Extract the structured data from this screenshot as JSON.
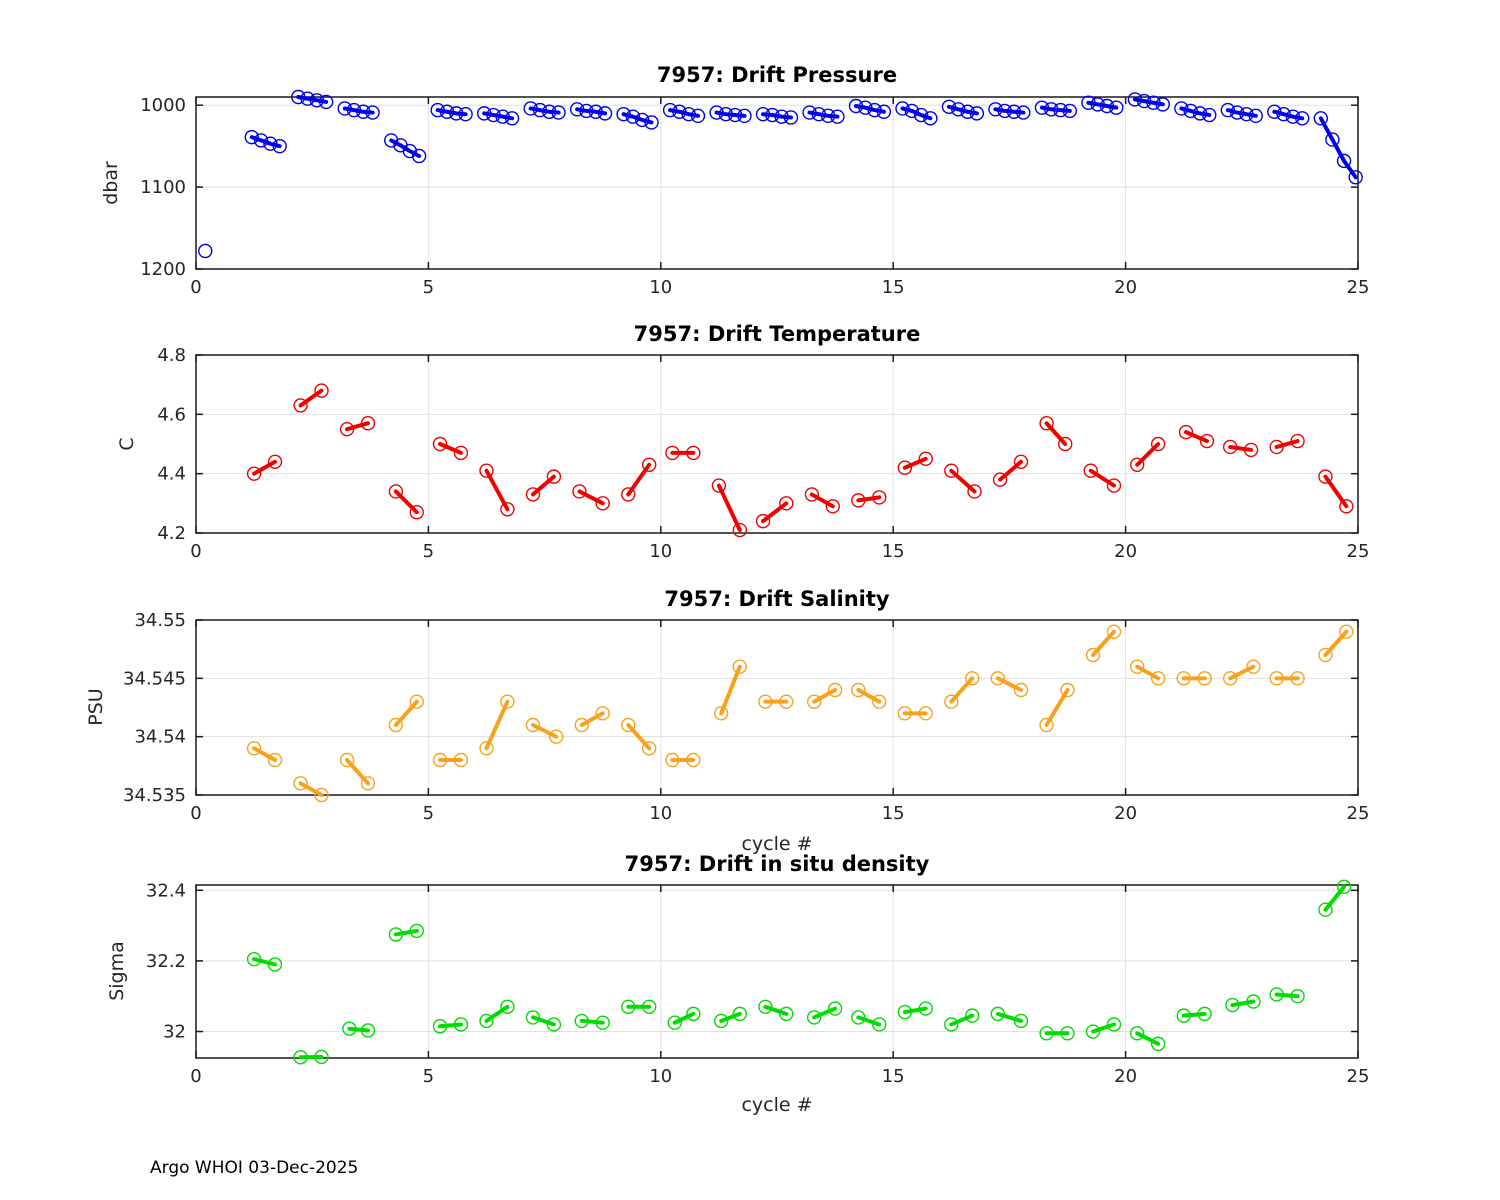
{
  "figure": {
    "float_id": "7957",
    "footer": "Argo WHOI 03-Dec-2025"
  },
  "chart_data": [
    {
      "type": "line",
      "title": "7957: Drift Pressure",
      "ylabel": "dbar",
      "xlabel": "",
      "color": "#0000EE",
      "xlim": [
        0,
        25
      ],
      "ylim": [
        990,
        1200
      ],
      "y_reversed": true,
      "grid": true,
      "xticks": [
        0,
        5,
        10,
        15,
        20,
        25
      ],
      "xtick_labels": [
        "0",
        "5",
        "10",
        "15",
        "20",
        "25"
      ],
      "yticks": [
        1000,
        1100,
        1200
      ],
      "ytick_labels": [
        "1000",
        "1100",
        "1200"
      ],
      "segments": [
        [
          [
            0.2,
            1178
          ]
        ],
        [
          [
            1.2,
            1039
          ],
          [
            1.4,
            1043
          ],
          [
            1.6,
            1047
          ],
          [
            1.8,
            1050
          ]
        ],
        [
          [
            2.2,
            990
          ],
          [
            2.4,
            992
          ],
          [
            2.6,
            994
          ],
          [
            2.8,
            996
          ]
        ],
        [
          [
            3.2,
            1004
          ],
          [
            3.4,
            1006
          ],
          [
            3.6,
            1008
          ],
          [
            3.8,
            1009
          ]
        ],
        [
          [
            4.2,
            1043
          ],
          [
            4.4,
            1049
          ],
          [
            4.6,
            1056
          ],
          [
            4.8,
            1062
          ]
        ],
        [
          [
            5.2,
            1006
          ],
          [
            5.4,
            1008
          ],
          [
            5.6,
            1010
          ],
          [
            5.8,
            1011
          ]
        ],
        [
          [
            6.2,
            1010
          ],
          [
            6.4,
            1012
          ],
          [
            6.6,
            1014
          ],
          [
            6.8,
            1016
          ]
        ],
        [
          [
            7.2,
            1004
          ],
          [
            7.4,
            1006
          ],
          [
            7.6,
            1008
          ],
          [
            7.8,
            1009
          ]
        ],
        [
          [
            8.2,
            1005
          ],
          [
            8.4,
            1007
          ],
          [
            8.6,
            1008
          ],
          [
            8.8,
            1010
          ]
        ],
        [
          [
            9.2,
            1011
          ],
          [
            9.4,
            1014
          ],
          [
            9.6,
            1018
          ],
          [
            9.8,
            1021
          ]
        ],
        [
          [
            10.2,
            1006
          ],
          [
            10.4,
            1008
          ],
          [
            10.6,
            1011
          ],
          [
            10.8,
            1013
          ]
        ],
        [
          [
            11.2,
            1009
          ],
          [
            11.4,
            1011
          ],
          [
            11.6,
            1012
          ],
          [
            11.8,
            1013
          ]
        ],
        [
          [
            12.2,
            1011
          ],
          [
            12.4,
            1012
          ],
          [
            12.6,
            1014
          ],
          [
            12.8,
            1015
          ]
        ],
        [
          [
            13.2,
            1009
          ],
          [
            13.4,
            1011
          ],
          [
            13.6,
            1013
          ],
          [
            13.8,
            1014
          ]
        ],
        [
          [
            14.2,
            1001
          ],
          [
            14.4,
            1003
          ],
          [
            14.6,
            1006
          ],
          [
            14.8,
            1008
          ]
        ],
        [
          [
            15.2,
            1004
          ],
          [
            15.4,
            1007
          ],
          [
            15.6,
            1012
          ],
          [
            15.8,
            1016
          ]
        ],
        [
          [
            16.2,
            1002
          ],
          [
            16.4,
            1005
          ],
          [
            16.6,
            1008
          ],
          [
            16.8,
            1010
          ]
        ],
        [
          [
            17.2,
            1005
          ],
          [
            17.4,
            1007
          ],
          [
            17.6,
            1008
          ],
          [
            17.8,
            1009
          ]
        ],
        [
          [
            18.2,
            1003
          ],
          [
            18.4,
            1005
          ],
          [
            18.6,
            1006
          ],
          [
            18.8,
            1007
          ]
        ],
        [
          [
            19.2,
            997
          ],
          [
            19.4,
            999
          ],
          [
            19.6,
            1001
          ],
          [
            19.8,
            1003
          ]
        ],
        [
          [
            20.2,
            993
          ],
          [
            20.4,
            995
          ],
          [
            20.6,
            997
          ],
          [
            20.8,
            999
          ]
        ],
        [
          [
            21.2,
            1004
          ],
          [
            21.4,
            1007
          ],
          [
            21.6,
            1010
          ],
          [
            21.8,
            1012
          ]
        ],
        [
          [
            22.2,
            1006
          ],
          [
            22.4,
            1009
          ],
          [
            22.6,
            1011
          ],
          [
            22.8,
            1013
          ]
        ],
        [
          [
            23.2,
            1008
          ],
          [
            23.4,
            1011
          ],
          [
            23.6,
            1014
          ],
          [
            23.8,
            1016
          ]
        ],
        [
          [
            24.2,
            1016
          ],
          [
            24.45,
            1042
          ],
          [
            24.7,
            1068
          ],
          [
            24.95,
            1088
          ]
        ]
      ]
    },
    {
      "type": "line",
      "title": "7957: Drift Temperature",
      "ylabel": "C",
      "xlabel": "",
      "color": "#F10000",
      "xlim": [
        0,
        25
      ],
      "ylim": [
        4.2,
        4.8
      ],
      "y_reversed": false,
      "grid": true,
      "xticks": [
        0,
        5,
        10,
        15,
        20,
        25
      ],
      "xtick_labels": [
        "0",
        "5",
        "10",
        "15",
        "20",
        "25"
      ],
      "yticks": [
        4.2,
        4.4,
        4.6,
        4.8
      ],
      "ytick_labels": [
        "4.2",
        "4.4",
        "4.6",
        "4.8"
      ],
      "segments": [
        [
          [
            1.25,
            4.4
          ],
          [
            1.7,
            4.44
          ]
        ],
        [
          [
            2.25,
            4.63
          ],
          [
            2.7,
            4.68
          ]
        ],
        [
          [
            3.25,
            4.55
          ],
          [
            3.7,
            4.57
          ]
        ],
        [
          [
            4.3,
            4.34
          ],
          [
            4.75,
            4.27
          ]
        ],
        [
          [
            5.25,
            4.5
          ],
          [
            5.7,
            4.47
          ]
        ],
        [
          [
            6.25,
            4.41
          ],
          [
            6.7,
            4.28
          ]
        ],
        [
          [
            7.25,
            4.33
          ],
          [
            7.7,
            4.39
          ]
        ],
        [
          [
            8.25,
            4.34
          ],
          [
            8.75,
            4.3
          ]
        ],
        [
          [
            9.3,
            4.33
          ],
          [
            9.75,
            4.43
          ]
        ],
        [
          [
            10.25,
            4.47
          ],
          [
            10.7,
            4.47
          ]
        ],
        [
          [
            11.25,
            4.36
          ],
          [
            11.7,
            4.21
          ]
        ],
        [
          [
            12.2,
            4.24
          ],
          [
            12.7,
            4.3
          ]
        ],
        [
          [
            13.25,
            4.33
          ],
          [
            13.7,
            4.29
          ]
        ],
        [
          [
            14.25,
            4.31
          ],
          [
            14.7,
            4.32
          ]
        ],
        [
          [
            15.25,
            4.42
          ],
          [
            15.7,
            4.45
          ]
        ],
        [
          [
            16.25,
            4.41
          ],
          [
            16.75,
            4.34
          ]
        ],
        [
          [
            17.3,
            4.38
          ],
          [
            17.75,
            4.44
          ]
        ],
        [
          [
            18.3,
            4.57
          ],
          [
            18.7,
            4.5
          ]
        ],
        [
          [
            19.25,
            4.41
          ],
          [
            19.75,
            4.36
          ]
        ],
        [
          [
            20.25,
            4.43
          ],
          [
            20.7,
            4.5
          ]
        ],
        [
          [
            21.3,
            4.54
          ],
          [
            21.75,
            4.51
          ]
        ],
        [
          [
            22.25,
            4.49
          ],
          [
            22.7,
            4.48
          ]
        ],
        [
          [
            23.25,
            4.49
          ],
          [
            23.7,
            4.51
          ]
        ],
        [
          [
            24.3,
            4.39
          ],
          [
            24.75,
            4.29
          ]
        ]
      ]
    },
    {
      "type": "line",
      "title": "7957: Drift Salinity",
      "ylabel": "PSU",
      "xlabel": "cycle #",
      "color": "#F9A11B",
      "xlim": [
        0,
        25
      ],
      "ylim": [
        34.535,
        34.55
      ],
      "y_reversed": false,
      "grid": true,
      "xticks": [
        0,
        5,
        10,
        15,
        20,
        25
      ],
      "xtick_labels": [
        "0",
        "5",
        "10",
        "15",
        "20",
        "25"
      ],
      "yticks": [
        34.535,
        34.54,
        34.545,
        34.55
      ],
      "ytick_labels": [
        "34.535",
        "34.54",
        "34.545",
        "34.55"
      ],
      "segments": [
        [
          [
            1.25,
            34.539
          ],
          [
            1.7,
            34.538
          ]
        ],
        [
          [
            2.25,
            34.536
          ],
          [
            2.7,
            34.535
          ]
        ],
        [
          [
            3.25,
            34.538
          ],
          [
            3.7,
            34.536
          ]
        ],
        [
          [
            4.3,
            34.541
          ],
          [
            4.75,
            34.543
          ]
        ],
        [
          [
            5.25,
            34.538
          ],
          [
            5.7,
            34.538
          ]
        ],
        [
          [
            6.25,
            34.539
          ],
          [
            6.7,
            34.543
          ]
        ],
        [
          [
            7.25,
            34.541
          ],
          [
            7.75,
            34.54
          ]
        ],
        [
          [
            8.3,
            34.541
          ],
          [
            8.75,
            34.542
          ]
        ],
        [
          [
            9.3,
            34.541
          ],
          [
            9.75,
            34.539
          ]
        ],
        [
          [
            10.25,
            34.538
          ],
          [
            10.7,
            34.538
          ]
        ],
        [
          [
            11.3,
            34.542
          ],
          [
            11.7,
            34.546
          ]
        ],
        [
          [
            12.25,
            34.543
          ],
          [
            12.7,
            34.543
          ]
        ],
        [
          [
            13.3,
            34.543
          ],
          [
            13.75,
            34.544
          ]
        ],
        [
          [
            14.25,
            34.544
          ],
          [
            14.7,
            34.543
          ]
        ],
        [
          [
            15.25,
            34.542
          ],
          [
            15.7,
            34.542
          ]
        ],
        [
          [
            16.25,
            34.543
          ],
          [
            16.7,
            34.545
          ]
        ],
        [
          [
            17.25,
            34.545
          ],
          [
            17.75,
            34.544
          ]
        ],
        [
          [
            18.3,
            34.541
          ],
          [
            18.75,
            34.544
          ]
        ],
        [
          [
            19.3,
            34.547
          ],
          [
            19.75,
            34.549
          ]
        ],
        [
          [
            20.25,
            34.546
          ],
          [
            20.7,
            34.545
          ]
        ],
        [
          [
            21.25,
            34.545
          ],
          [
            21.7,
            34.545
          ]
        ],
        [
          [
            22.25,
            34.545
          ],
          [
            22.75,
            34.546
          ]
        ],
        [
          [
            23.25,
            34.545
          ],
          [
            23.7,
            34.545
          ]
        ],
        [
          [
            24.3,
            34.547
          ],
          [
            24.75,
            34.549
          ]
        ]
      ]
    },
    {
      "type": "line",
      "title": "7957: Drift in situ density",
      "ylabel": "Sigma",
      "xlabel": "cycle #",
      "color": "#00DB00",
      "xlim": [
        0,
        25
      ],
      "ylim": [
        31.925,
        32.415
      ],
      "y_reversed": false,
      "grid": true,
      "xticks": [
        0,
        5,
        10,
        15,
        20,
        25
      ],
      "xtick_labels": [
        "0",
        "5",
        "10",
        "15",
        "20",
        "25"
      ],
      "yticks": [
        32,
        32.2,
        32.4
      ],
      "ytick_labels": [
        "32",
        "32.2",
        "32.4"
      ],
      "segments": [
        [
          [
            1.25,
            32.205
          ],
          [
            1.7,
            32.19
          ]
        ],
        [
          [
            2.25,
            31.927
          ],
          [
            2.7,
            31.928
          ]
        ],
        [
          [
            3.3,
            32.008
          ],
          [
            3.7,
            32.003
          ]
        ],
        [
          [
            4.3,
            32.275
          ],
          [
            4.75,
            32.285
          ]
        ],
        [
          [
            5.25,
            32.015
          ],
          [
            5.7,
            32.02
          ]
        ],
        [
          [
            6.25,
            32.03
          ],
          [
            6.7,
            32.07
          ]
        ],
        [
          [
            7.25,
            32.04
          ],
          [
            7.7,
            32.02
          ]
        ],
        [
          [
            8.3,
            32.03
          ],
          [
            8.75,
            32.025
          ]
        ],
        [
          [
            9.3,
            32.07
          ],
          [
            9.75,
            32.07
          ]
        ],
        [
          [
            10.3,
            32.025
          ],
          [
            10.7,
            32.05
          ]
        ],
        [
          [
            11.3,
            32.03
          ],
          [
            11.7,
            32.05
          ]
        ],
        [
          [
            12.25,
            32.07
          ],
          [
            12.7,
            32.05
          ]
        ],
        [
          [
            13.3,
            32.04
          ],
          [
            13.75,
            32.065
          ]
        ],
        [
          [
            14.25,
            32.04
          ],
          [
            14.7,
            32.02
          ]
        ],
        [
          [
            15.25,
            32.055
          ],
          [
            15.7,
            32.065
          ]
        ],
        [
          [
            16.25,
            32.02
          ],
          [
            16.7,
            32.045
          ]
        ],
        [
          [
            17.25,
            32.05
          ],
          [
            17.75,
            32.03
          ]
        ],
        [
          [
            18.3,
            31.995
          ],
          [
            18.75,
            31.995
          ]
        ],
        [
          [
            19.3,
            32.0
          ],
          [
            19.75,
            32.02
          ]
        ],
        [
          [
            20.25,
            31.995
          ],
          [
            20.7,
            31.965
          ]
        ],
        [
          [
            21.25,
            32.045
          ],
          [
            21.7,
            32.05
          ]
        ],
        [
          [
            22.3,
            32.075
          ],
          [
            22.75,
            32.085
          ]
        ],
        [
          [
            23.25,
            32.105
          ],
          [
            23.7,
            32.1
          ]
        ],
        [
          [
            24.3,
            32.345
          ],
          [
            24.7,
            32.41
          ]
        ]
      ]
    }
  ]
}
